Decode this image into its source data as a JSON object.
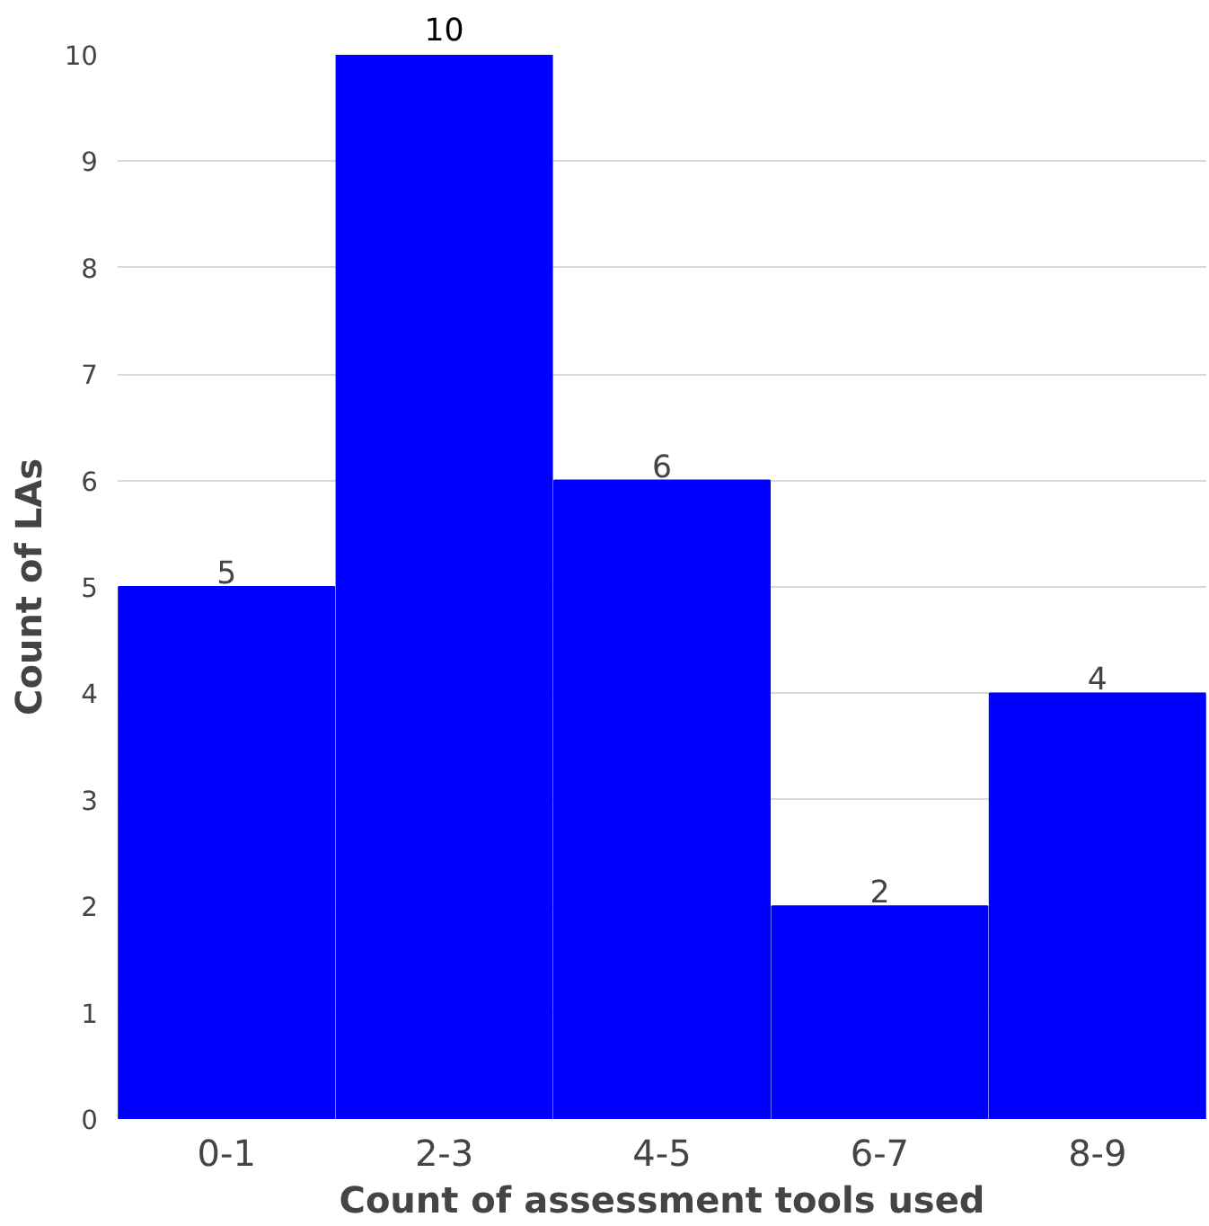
{
  "chart_data": {
    "type": "bar",
    "categories": [
      "0-1",
      "2-3",
      "4-5",
      "6-7",
      "8-9"
    ],
    "values": [
      5,
      10,
      6,
      2,
      4
    ],
    "color": "#0000ff",
    "xlabel": "Count of assessment tools used",
    "ylabel": "Count of LAs",
    "ylim": [
      0,
      10
    ],
    "yticks": [
      0,
      1,
      2,
      3,
      4,
      5,
      6,
      7,
      8,
      9,
      10
    ],
    "grid": "y",
    "data_labels": true
  }
}
